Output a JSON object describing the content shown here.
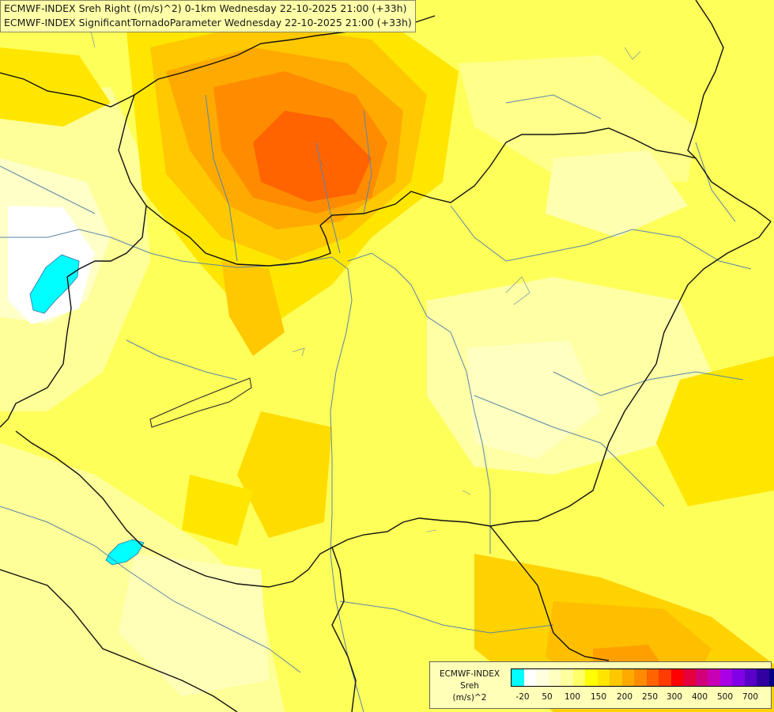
{
  "titles": {
    "line1": "ECMWF-INDEX Sreh Right ((m/s)^2) 0-1km Wednesday 22-10-2025 21:00 (+33h)",
    "line2": "ECMWF-INDEX SignificantTornadoParameter Wednesday 22-10-2025 21:00 (+33h)"
  },
  "legend": {
    "model": "ECMWF-INDEX",
    "parameter": "Sreh",
    "unit": "(m/s)^2",
    "colors": [
      "#00ffff",
      "#ffffff",
      "#ffffe0",
      "#ffffc0",
      "#ffffa0",
      "#ffff66",
      "#ffff00",
      "#ffe600",
      "#ffc800",
      "#ffaa00",
      "#ff8c00",
      "#ff6400",
      "#ff3c00",
      "#ff0000",
      "#e6003c",
      "#d20078",
      "#c800b4",
      "#aa00e6",
      "#8200e6",
      "#5a00c8",
      "#3200a0",
      "#000080"
    ],
    "ticks": [
      "-20",
      "50",
      "100",
      "150",
      "200",
      "250",
      "300",
      "400",
      "500",
      "700"
    ]
  }
}
